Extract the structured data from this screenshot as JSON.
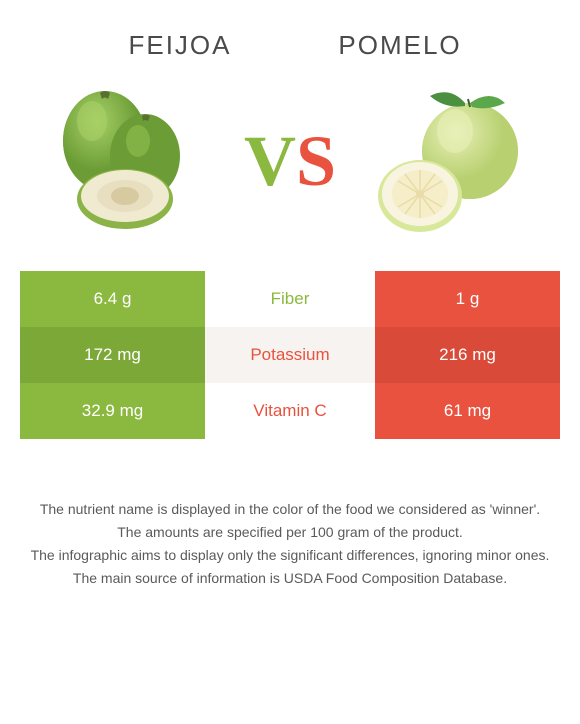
{
  "left_food": {
    "name": "FEIJOA",
    "color": "#8bb83f",
    "color_alt": "#7ca838"
  },
  "right_food": {
    "name": "POMELO",
    "color": "#e8523f",
    "color_alt": "#d94a38"
  },
  "vs": {
    "v_color": "#8bb83f",
    "s_color": "#e8523f"
  },
  "rows": [
    {
      "nutrient": "Fiber",
      "left_value": "6.4 g",
      "right_value": "1 g",
      "winner": "left",
      "alt": false
    },
    {
      "nutrient": "Potassium",
      "left_value": "172 mg",
      "right_value": "216 mg",
      "winner": "right",
      "alt": true
    },
    {
      "nutrient": "Vitamin C",
      "left_value": "32.9 mg",
      "right_value": "61 mg",
      "winner": "right",
      "alt": false
    }
  ],
  "footnotes": [
    "The nutrient name is displayed in the color of the food we considered as 'winner'.",
    "The amounts are specified per 100 gram of the product.",
    "The infographic aims to display only the significant differences, ignoring minor ones.",
    "The main source of information is USDA Food Composition Database."
  ]
}
